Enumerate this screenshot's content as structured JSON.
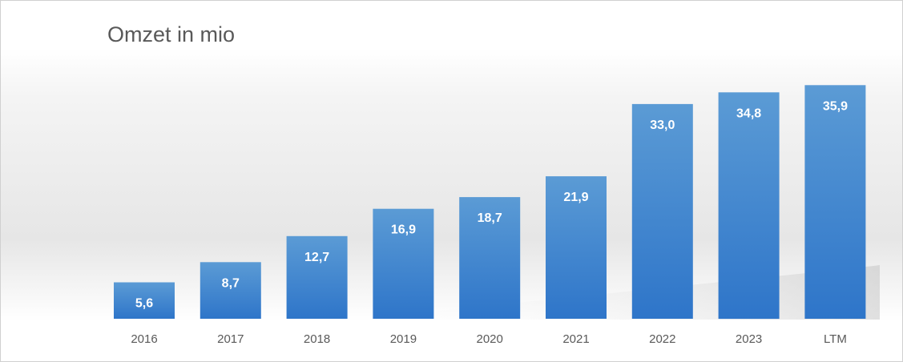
{
  "chart_data": {
    "type": "bar",
    "title": "Omzet in mio",
    "categories": [
      "2016",
      "2017",
      "2018",
      "2019",
      "2020",
      "2021",
      "2022",
      "2023",
      "LTM"
    ],
    "values": [
      5.6,
      8.7,
      12.7,
      16.9,
      18.7,
      21.9,
      33.0,
      34.8,
      35.9
    ],
    "value_labels": [
      "5,6",
      "8,7",
      "12,7",
      "16,9",
      "18,7",
      "21,9",
      "33,0",
      "34,8",
      "35,9"
    ],
    "xlabel": "",
    "ylabel": "",
    "ylim": [
      0,
      40
    ],
    "grid": false,
    "legend": "none",
    "colors": {
      "bar_top": "#5b9bd5",
      "bar_bottom": "#2e75c9",
      "text": "#595959",
      "label": "#ffffff"
    }
  }
}
